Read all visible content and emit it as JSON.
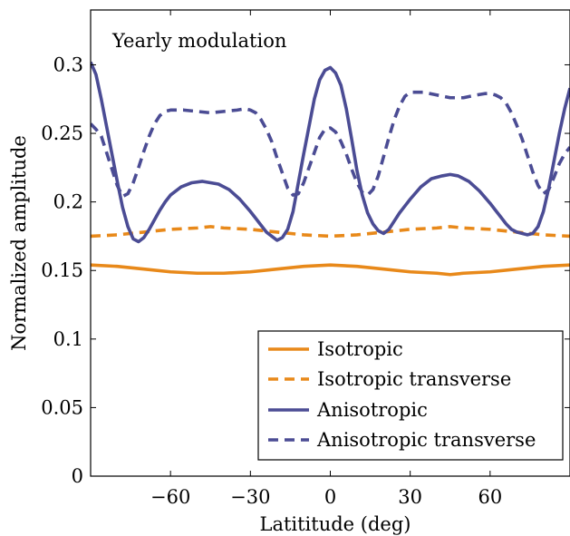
{
  "chart_data": {
    "type": "line",
    "annotation": "Yearly modulation",
    "xlabel": "Latititude (deg)",
    "ylabel": "Normalized amplitude",
    "xlim": [
      -90,
      90
    ],
    "ylim": [
      0,
      0.34
    ],
    "xticks": [
      -60,
      -30,
      0,
      30,
      60
    ],
    "xtick_labels": [
      "−60",
      "−30",
      "0",
      "30",
      "60"
    ],
    "yticks": [
      0,
      0.05,
      0.1,
      0.15,
      0.2,
      0.25,
      0.3
    ],
    "ytick_labels": [
      "0",
      "0.05",
      "0.1",
      "0.15",
      "0.2",
      "0.25",
      "0.3"
    ],
    "grid": false,
    "legend_position": "bottom-right",
    "series": [
      {
        "name": "Isotropic",
        "color": "#e8891a",
        "style": "solid",
        "x": [
          -90,
          -80,
          -70,
          -60,
          -50,
          -45,
          -40,
          -30,
          -20,
          -10,
          0,
          10,
          20,
          30,
          40,
          45,
          50,
          60,
          70,
          80,
          90
        ],
        "y": [
          0.154,
          0.153,
          0.151,
          0.149,
          0.148,
          0.148,
          0.148,
          0.149,
          0.151,
          0.153,
          0.154,
          0.153,
          0.151,
          0.149,
          0.148,
          0.147,
          0.148,
          0.149,
          0.151,
          0.153,
          0.154
        ]
      },
      {
        "name": "Isotropic transverse",
        "color": "#e8891a",
        "style": "dashed",
        "x": [
          -90,
          -80,
          -70,
          -60,
          -50,
          -45,
          -40,
          -30,
          -20,
          -10,
          0,
          10,
          20,
          30,
          40,
          45,
          50,
          60,
          70,
          80,
          90
        ],
        "y": [
          0.175,
          0.176,
          0.178,
          0.18,
          0.181,
          0.182,
          0.181,
          0.18,
          0.178,
          0.176,
          0.175,
          0.176,
          0.178,
          0.18,
          0.181,
          0.182,
          0.181,
          0.18,
          0.178,
          0.176,
          0.175
        ]
      },
      {
        "name": "Anisotropic",
        "color": "#4b4c94",
        "style": "solid",
        "x": [
          -90,
          -88,
          -86,
          -84,
          -82,
          -80,
          -78,
          -76,
          -74,
          -72,
          -70,
          -68,
          -66,
          -64,
          -62,
          -60,
          -56,
          -52,
          -48,
          -45,
          -42,
          -38,
          -34,
          -30,
          -28,
          -26,
          -24,
          -22,
          -20,
          -18,
          -16,
          -14,
          -12,
          -10,
          -8,
          -6,
          -4,
          -2,
          0,
          2,
          4,
          6,
          8,
          10,
          12,
          14,
          16,
          18,
          20,
          22,
          24,
          26,
          28,
          30,
          34,
          38,
          42,
          45,
          48,
          52,
          56,
          60,
          62,
          64,
          66,
          68,
          70,
          72,
          74,
          76,
          78,
          80,
          82,
          84,
          86,
          88,
          90
        ],
        "y": [
          0.302,
          0.293,
          0.275,
          0.255,
          0.235,
          0.215,
          0.196,
          0.182,
          0.173,
          0.171,
          0.174,
          0.18,
          0.187,
          0.194,
          0.2,
          0.205,
          0.211,
          0.214,
          0.215,
          0.214,
          0.213,
          0.209,
          0.202,
          0.193,
          0.188,
          0.183,
          0.178,
          0.175,
          0.172,
          0.174,
          0.18,
          0.193,
          0.214,
          0.235,
          0.255,
          0.275,
          0.289,
          0.296,
          0.298,
          0.294,
          0.285,
          0.268,
          0.246,
          0.223,
          0.205,
          0.192,
          0.184,
          0.179,
          0.177,
          0.18,
          0.186,
          0.192,
          0.197,
          0.202,
          0.211,
          0.217,
          0.219,
          0.22,
          0.219,
          0.215,
          0.208,
          0.199,
          0.194,
          0.189,
          0.184,
          0.18,
          0.178,
          0.177,
          0.176,
          0.177,
          0.182,
          0.193,
          0.21,
          0.23,
          0.25,
          0.268,
          0.283
        ]
      },
      {
        "name": "Anisotropic transverse",
        "color": "#4b4c94",
        "style": "dashed",
        "x": [
          -90,
          -88,
          -86,
          -84,
          -82,
          -80,
          -78,
          -76,
          -74,
          -72,
          -70,
          -68,
          -66,
          -64,
          -62,
          -60,
          -55,
          -50,
          -45,
          -40,
          -35,
          -32,
          -30,
          -28,
          -26,
          -24,
          -22,
          -20,
          -18,
          -16,
          -14,
          -12,
          -10,
          -8,
          -6,
          -4,
          -2,
          0,
          2,
          4,
          6,
          8,
          10,
          12,
          14,
          16,
          18,
          20,
          22,
          24,
          26,
          28,
          30,
          35,
          40,
          45,
          50,
          55,
          58,
          60,
          62,
          64,
          66,
          68,
          70,
          72,
          74,
          76,
          78,
          80,
          82,
          84,
          86,
          88,
          90
        ],
        "y": [
          0.257,
          0.253,
          0.248,
          0.236,
          0.224,
          0.212,
          0.204,
          0.206,
          0.214,
          0.225,
          0.237,
          0.248,
          0.257,
          0.263,
          0.266,
          0.267,
          0.267,
          0.266,
          0.265,
          0.266,
          0.267,
          0.268,
          0.267,
          0.265,
          0.26,
          0.253,
          0.244,
          0.232,
          0.221,
          0.21,
          0.205,
          0.206,
          0.214,
          0.225,
          0.236,
          0.247,
          0.253,
          0.254,
          0.251,
          0.244,
          0.235,
          0.224,
          0.214,
          0.207,
          0.205,
          0.209,
          0.219,
          0.233,
          0.247,
          0.26,
          0.27,
          0.277,
          0.28,
          0.28,
          0.278,
          0.276,
          0.276,
          0.278,
          0.279,
          0.279,
          0.278,
          0.276,
          0.272,
          0.265,
          0.256,
          0.246,
          0.234,
          0.222,
          0.212,
          0.206,
          0.209,
          0.218,
          0.228,
          0.235,
          0.24
        ]
      }
    ]
  }
}
